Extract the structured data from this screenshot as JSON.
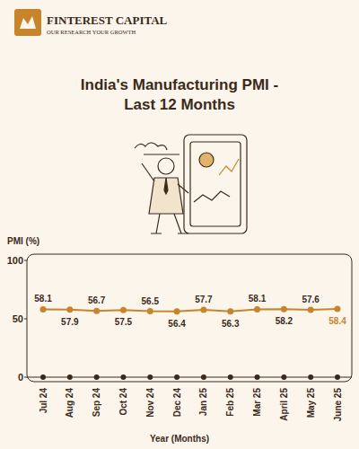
{
  "header": {
    "brand": "FINTEREST CAPITAL",
    "tagline": "OUR RESEARCH YOUR GROWTH"
  },
  "chart_data": {
    "type": "line",
    "title": "India's Manufacturing PMI - Last 12 Months",
    "y_label": "PMI (%)",
    "x_label": "Year (Months)",
    "categories": [
      "Jul 24",
      "Aug 24",
      "Sep 24",
      "Oct 24",
      "Nov 24",
      "Dec 24",
      "Jan 25",
      "Feb 25",
      "Mar 25",
      "April 25",
      "May 25",
      "June 25"
    ],
    "values": [
      58.1,
      57.9,
      56.7,
      57.5,
      56.5,
      56.4,
      57.7,
      56.3,
      58.1,
      58.2,
      57.6,
      58.4
    ],
    "color": "#c8842a",
    "marker": "circle",
    "data_labels": true,
    "ylim": [
      0,
      100
    ],
    "yticks": [
      0,
      50,
      100
    ],
    "grid": false
  }
}
